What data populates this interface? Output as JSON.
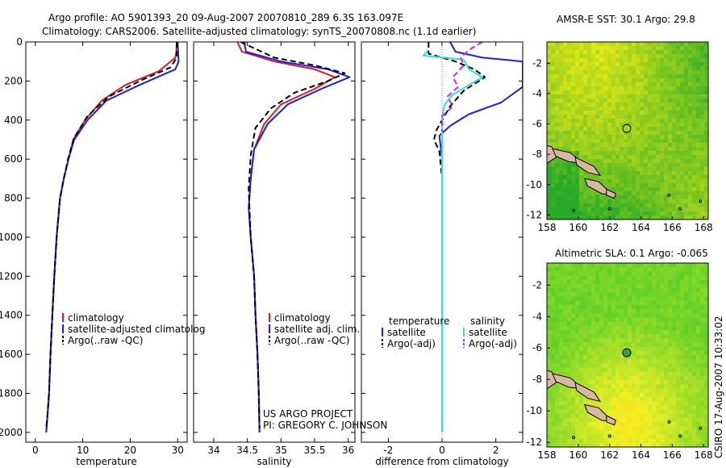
{
  "title": {
    "line1": "Argo profile: AO 5901393_20 09-Aug-2007 20070810_289 6.3S 163.097E",
    "line2": "Climatology: CARS2006. Satellite-adjusted climatology: synTS_20070808.nc (1.1d earlier)"
  },
  "credit": "CSIRO 17-Aug-2007 10:33:02",
  "project": {
    "line1": "US ARGO PROJECT",
    "line2": "PI: GREGORY C. JOHNSON"
  },
  "colors": {
    "climatology": "#d42020",
    "satellite": "#2020d8",
    "argo": "#000000",
    "sal_satellite": "#30e0e0",
    "sal_argo": "#e020e0"
  },
  "chart_data": [
    {
      "type": "line",
      "xlabel": "temperature",
      "ylabel": "",
      "xlim": [
        -2,
        32
      ],
      "ylim": [
        2050,
        0
      ],
      "xticks": [
        0,
        10,
        20,
        30
      ],
      "yticks": [
        0,
        200,
        400,
        600,
        800,
        1000,
        1200,
        1400,
        1600,
        1800,
        2000
      ],
      "legend": [
        "climatology",
        "satellite-adjusted climatolog",
        "Argo(..raw -QC)"
      ],
      "series": [
        {
          "name": "climatology",
          "style": "solid",
          "color": "#d42020",
          "x": [
            29.8,
            29.7,
            29.5,
            26.0,
            19.0,
            14.0,
            10.5,
            8.0,
            7.0,
            6.0,
            5.2,
            4.5,
            4.0,
            3.6,
            3.2,
            2.9,
            2.6,
            2.3
          ],
          "y": [
            0,
            50,
            80,
            150,
            220,
            300,
            400,
            500,
            600,
            700,
            800,
            1000,
            1200,
            1400,
            1600,
            1800,
            1900,
            2000
          ]
        },
        {
          "name": "satellite-adjusted climatolog",
          "style": "solid",
          "color": "#2020d8",
          "x": [
            30.0,
            30.1,
            30.2,
            29.5,
            22.0,
            15.0,
            11.0,
            8.2,
            7.0,
            6.0,
            5.2,
            4.5,
            4.0,
            3.6,
            3.2,
            2.9,
            2.6,
            2.3
          ],
          "y": [
            0,
            50,
            100,
            140,
            220,
            300,
            400,
            500,
            600,
            700,
            800,
            1000,
            1200,
            1400,
            1600,
            1800,
            1900,
            2000
          ]
        },
        {
          "name": "Argo(..raw -QC)",
          "style": "dashed",
          "color": "#000000",
          "x": [
            29.8,
            29.8,
            28.5,
            22.0,
            15.5,
            11.0,
            8.2,
            7.0,
            6.0,
            5.2,
            4.5,
            4.0,
            3.6,
            3.2,
            2.9,
            2.6,
            2.3
          ],
          "y": [
            0,
            80,
            130,
            200,
            280,
            380,
            490,
            590,
            700,
            800,
            1000,
            1200,
            1400,
            1600,
            1800,
            1900,
            1980
          ]
        }
      ]
    },
    {
      "type": "line",
      "xlabel": "salinity",
      "ylabel": "",
      "xlim": [
        33.7,
        36.1
      ],
      "ylim": [
        2050,
        0
      ],
      "xticks": [
        34,
        34.5,
        35,
        35.5,
        36
      ],
      "legend": [
        "climatology",
        "satellite adj. clim.",
        "Argo(..raw -QC)"
      ],
      "series": [
        {
          "name": "climatology",
          "style": "solid",
          "color": "#d42020",
          "x": [
            34.35,
            34.42,
            34.9,
            35.5,
            35.8,
            35.5,
            35.0,
            34.75,
            34.6,
            34.55,
            34.52,
            34.55,
            34.6,
            34.62,
            34.65,
            34.67,
            34.68
          ],
          "y": [
            0,
            50,
            100,
            140,
            180,
            240,
            320,
            420,
            550,
            700,
            850,
            1000,
            1200,
            1400,
            1600,
            1800,
            2000
          ]
        },
        {
          "name": "satellite adj. clim.",
          "style": "solid",
          "color": "#2020d8",
          "x": [
            34.45,
            34.48,
            35.0,
            35.7,
            36.02,
            35.6,
            35.1,
            34.8,
            34.6,
            34.55,
            34.52,
            34.55,
            34.6,
            34.62,
            34.65,
            34.67,
            34.68
          ],
          "y": [
            0,
            50,
            100,
            140,
            180,
            240,
            320,
            420,
            550,
            700,
            850,
            1000,
            1200,
            1400,
            1600,
            1800,
            2000
          ]
        },
        {
          "name": "Argo(..raw -QC)",
          "style": "dashed",
          "color": "#000000",
          "x": [
            34.4,
            34.9,
            35.5,
            35.95,
            35.7,
            35.2,
            34.85,
            34.62,
            34.55,
            34.52,
            34.55,
            34.6,
            34.62,
            34.65,
            34.67,
            34.68
          ],
          "y": [
            0,
            80,
            120,
            160,
            200,
            260,
            340,
            440,
            580,
            750,
            1000,
            1200,
            1400,
            1600,
            1800,
            1980
          ]
        }
      ]
    },
    {
      "type": "line",
      "xlabel": "difference from climatology",
      "ylabel": "",
      "xlim": [
        -3,
        3
      ],
      "ylim": [
        2050,
        0
      ],
      "xticks": [
        -2,
        0,
        2
      ],
      "legend_groups": [
        {
          "title": "temperature",
          "entries": [
            "satellite",
            "Argo(-adj)"
          ]
        },
        {
          "title": "salinity",
          "entries": [
            "satellite",
            "Argo(-adj)"
          ]
        }
      ],
      "series": [
        {
          "name": "temperature satellite",
          "style": "solid",
          "color": "#2020d8",
          "x": [
            0.3,
            0.5,
            1.5,
            3.0,
            3.0,
            2.2,
            1.0,
            0.3,
            -0.1,
            0.0,
            0.0,
            0.0,
            0.0
          ],
          "y": [
            0,
            50,
            80,
            100,
            230,
            310,
            370,
            430,
            480,
            600,
            1000,
            1500,
            2000
          ]
        },
        {
          "name": "temperature Argo(-adj)",
          "style": "dashed",
          "color": "#000000",
          "x": [
            -0.5,
            -0.5,
            0.5,
            1.2,
            1.6,
            0.8,
            0.3,
            0.0,
            -0.2,
            -0.3,
            -0.1,
            0.0,
            0.0,
            0.0
          ],
          "y": [
            0,
            60,
            100,
            140,
            180,
            250,
            330,
            400,
            450,
            500,
            560,
            700,
            1200,
            2000
          ]
        },
        {
          "name": "salinity satellite",
          "style": "solid",
          "color": "#30e0e0",
          "x": [
            -0.5,
            -0.7,
            0.8,
            1.0,
            1.5,
            1.0,
            0.4,
            0.1,
            0.0,
            0.0,
            0.0,
            0.0,
            0.0
          ],
          "y": [
            40,
            70,
            90,
            140,
            180,
            220,
            270,
            320,
            380,
            500,
            1000,
            1500,
            2000
          ]
        },
        {
          "name": "salinity Argo(-adj)",
          "style": "dashed",
          "color": "#e020e0",
          "x": [
            1.5,
            1.0,
            0.7,
            0.8,
            0.4,
            0.6,
            0.2,
            0.4,
            0.0,
            0.0
          ],
          "y": [
            0,
            40,
            80,
            120,
            180,
            230,
            280,
            330,
            380,
            460
          ]
        }
      ]
    },
    {
      "type": "heatmap",
      "title": "AMSR-E SST: 30.1  Argo: 29.8",
      "xticks": [
        158,
        160,
        162,
        164,
        166,
        168
      ],
      "yticks": [
        -2,
        -4,
        -6,
        -8,
        -10,
        -12
      ],
      "xlim": [
        158,
        168.3
      ],
      "ylim": [
        -12.3,
        -0.6
      ],
      "marker": {
        "lon": 163.097,
        "lat": -6.3
      }
    },
    {
      "type": "heatmap",
      "title": "Altimetric SLA: 0.1  Argo: -0.065",
      "xticks": [
        158,
        160,
        162,
        164,
        166,
        168
      ],
      "yticks": [
        -2,
        -4,
        -6,
        -8,
        -10,
        -12
      ],
      "xlim": [
        158,
        168.3
      ],
      "ylim": [
        -12.3,
        -0.6
      ],
      "marker": {
        "lon": 163.097,
        "lat": -6.3
      }
    }
  ]
}
